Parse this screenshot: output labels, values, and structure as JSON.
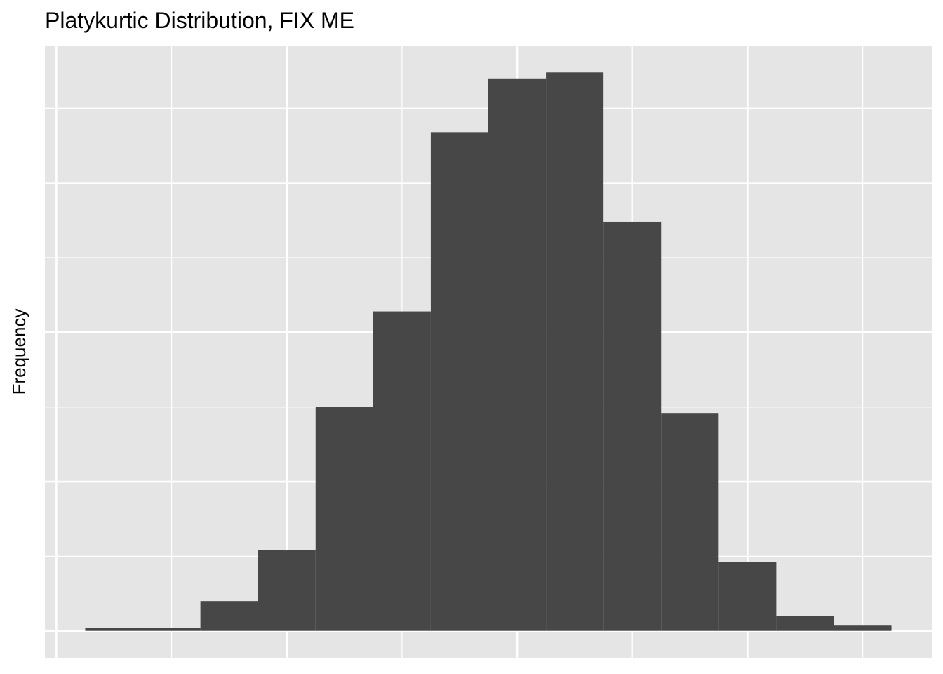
{
  "chart_data": {
    "type": "histogram",
    "title": "Platykurtic Distribution, FIX ME",
    "y_label": "Frequency",
    "bins": [
      -1.875,
      -1.625,
      -1.375,
      -1.125,
      -0.875,
      -0.625,
      -0.375,
      -0.125,
      0.125,
      0.375,
      0.625,
      0.875,
      1.125,
      1.375,
      1.625
    ],
    "counts": [
      2,
      2,
      20,
      54,
      150,
      214,
      334,
      370,
      374,
      274,
      146,
      46,
      10,
      4
    ],
    "color": "#474747",
    "xlim": [
      -2.05,
      1.8
    ],
    "xticks": [
      -2,
      -1,
      0,
      1
    ],
    "minor_xticks": [
      -1.5,
      -0.5,
      0.5,
      1.5
    ],
    "ylim": [
      -18,
      392
    ],
    "yticks": [
      0,
      100,
      200,
      300
    ],
    "minor_yticks": [
      50,
      150,
      250,
      350
    ],
    "tick_labels": false,
    "grid": true
  }
}
